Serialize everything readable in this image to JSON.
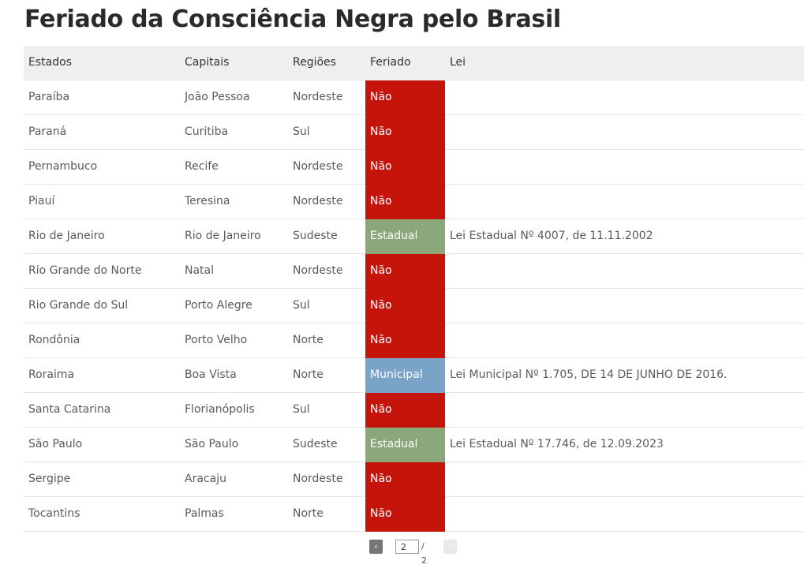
{
  "title": "Feriado da Consciência Negra pelo Brasil",
  "colors": {
    "Não": "#c4140c",
    "Estadual": "#8aa87a",
    "Municipal": "#7aa3c8"
  },
  "table": {
    "headers": {
      "estados": "Estados",
      "capitais": "Capitais",
      "regioes": "Regiões",
      "feriado": "Feriado",
      "lei": "Lei"
    },
    "rows": [
      {
        "estado": "Paraíba",
        "capital": "João Pessoa",
        "regiao": "Nordeste",
        "feriado": "Não",
        "lei": ""
      },
      {
        "estado": "Paraná",
        "capital": "Curitiba",
        "regiao": "Sul",
        "feriado": "Não",
        "lei": ""
      },
      {
        "estado": "Pernambuco",
        "capital": "Recife",
        "regiao": "Nordeste",
        "feriado": "Não",
        "lei": ""
      },
      {
        "estado": "Piauí",
        "capital": "Teresina",
        "regiao": "Nordeste",
        "feriado": "Não",
        "lei": ""
      },
      {
        "estado": "Rio de Janeiro",
        "capital": "Rio de Janeiro",
        "regiao": "Sudeste",
        "feriado": "Estadual",
        "lei": "Lei Estadual Nº 4007, de 11.11.2002"
      },
      {
        "estado": "Rio Grande do Norte",
        "capital": "Natal",
        "regiao": "Nordeste",
        "feriado": "Não",
        "lei": ""
      },
      {
        "estado": "Rio Grande do Sul",
        "capital": "Porto Alegre",
        "regiao": "Sul",
        "feriado": "Não",
        "lei": ""
      },
      {
        "estado": "Rondônia",
        "capital": "Porto Velho",
        "regiao": "Norte",
        "feriado": "Não",
        "lei": ""
      },
      {
        "estado": "Roraima",
        "capital": "Boa Vista",
        "regiao": "Norte",
        "feriado": "Municipal",
        "lei": "Lei Municipal Nº 1.705, DE 14 DE JUNHO DE 2016."
      },
      {
        "estado": "Santa Catarina",
        "capital": "Florianópolis",
        "regiao": "Sul",
        "feriado": "Não",
        "lei": ""
      },
      {
        "estado": "São Paulo",
        "capital": "São Paulo",
        "regiao": "Sudeste",
        "feriado": "Estadual",
        "lei": "Lei Estadual Nº 17.746, de 12.09.2023"
      },
      {
        "estado": "Sergipe",
        "capital": "Aracaju",
        "regiao": "Nordeste",
        "feriado": "Não",
        "lei": ""
      },
      {
        "estado": "Tocantins",
        "capital": "Palmas",
        "regiao": "Norte",
        "feriado": "Não",
        "lei": ""
      }
    ]
  },
  "pagination": {
    "prev_icon": "chevron-left-icon",
    "next_icon": "chevron-right-icon",
    "prev_glyph": "‹",
    "next_glyph": "›",
    "current_page": "2",
    "total": "/ 2"
  }
}
